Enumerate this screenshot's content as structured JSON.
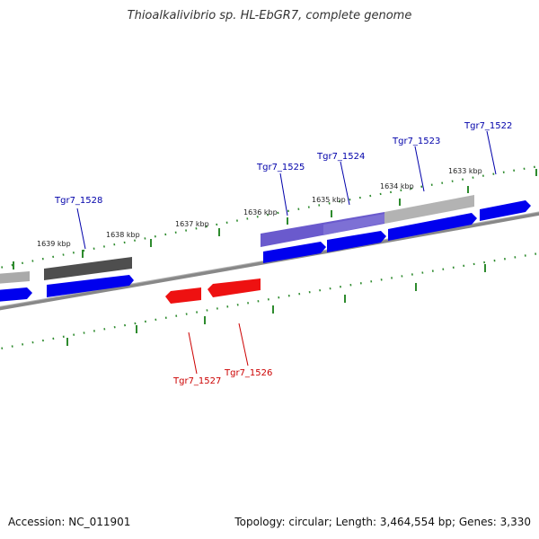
{
  "title": "Thioalkalivibrio sp. HL-EbGR7, complete genome",
  "accession": "Accession: NC_011901",
  "summary": "Topology: circular; Length: 3,464,554 bp; Genes: 3,330",
  "colors": {
    "backbone": "#7a7a7a",
    "ticks": "#2e8b2e",
    "cds": "#0000ee",
    "forward_label": "#0000aa",
    "reverse_gene": "#ee1111",
    "reverse_label": "#cc0000",
    "highlight": "#7060d0",
    "gray_dark": "#555555",
    "gray_light": "#b0b0b0"
  },
  "scale_labels": [
    "1639 kbp",
    "1638 kbp",
    "1637 kbp",
    "1636 kbp",
    "1635 kbp",
    "1634 kbp",
    "1633 kbp"
  ],
  "forward_genes": [
    "Tgr7_1528",
    "Tgr7_1525",
    "Tgr7_1524",
    "Tgr7_1523",
    "Tgr7_1522"
  ],
  "reverse_genes": [
    "Tgr7_1527",
    "Tgr7_1526"
  ]
}
